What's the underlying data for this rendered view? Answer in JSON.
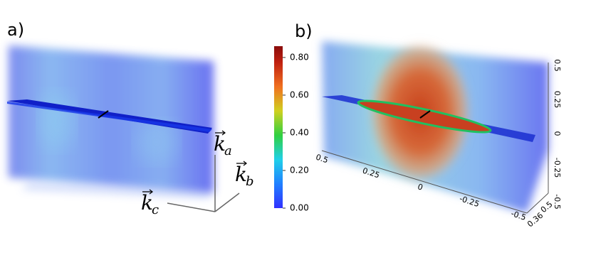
{
  "panels": [
    {
      "label": "a)"
    },
    {
      "label": "b)"
    }
  ],
  "axes_a": [
    {
      "symbol": "k",
      "subscript": "a"
    },
    {
      "symbol": "k",
      "subscript": "b"
    },
    {
      "symbol": "k",
      "subscript": "c"
    }
  ],
  "colorbar": {
    "lim": [
      0,
      0.86
    ],
    "ticks": [
      {
        "value": 0,
        "label": "0.00"
      },
      {
        "value": 0.2,
        "label": "0.20"
      },
      {
        "value": 0.4,
        "label": "0.40"
      },
      {
        "value": 0.6,
        "label": "0.60"
      },
      {
        "value": 0.8,
        "label": "0.80"
      }
    ]
  },
  "box_b": {
    "front": [
      "0.5",
      "0.25",
      "0",
      "-0.25",
      "-0.5"
    ],
    "right": [
      "0.5",
      "0.25",
      "0",
      "-0.25",
      "-0.5"
    ],
    "depth": [
      "0.5",
      "0.36"
    ]
  }
}
